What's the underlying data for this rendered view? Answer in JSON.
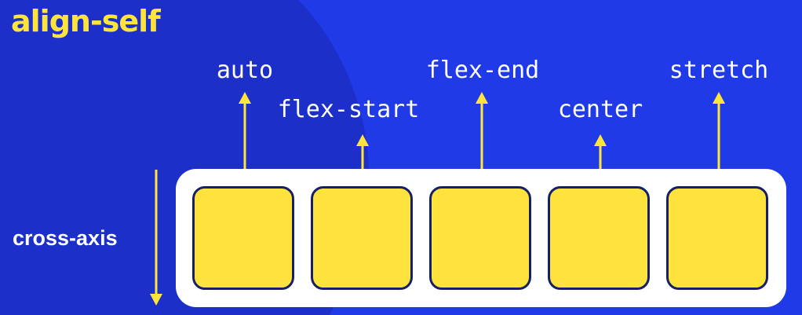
{
  "title": "align-self",
  "axis": {
    "label": "cross-axis"
  },
  "values": [
    "auto",
    "flex-start",
    "flex-end",
    "center",
    "stretch"
  ],
  "colors": {
    "background": "#1f3ae6",
    "accent_yellow": "#ffe53b",
    "box_border": "#152066",
    "container": "#ffffff"
  }
}
